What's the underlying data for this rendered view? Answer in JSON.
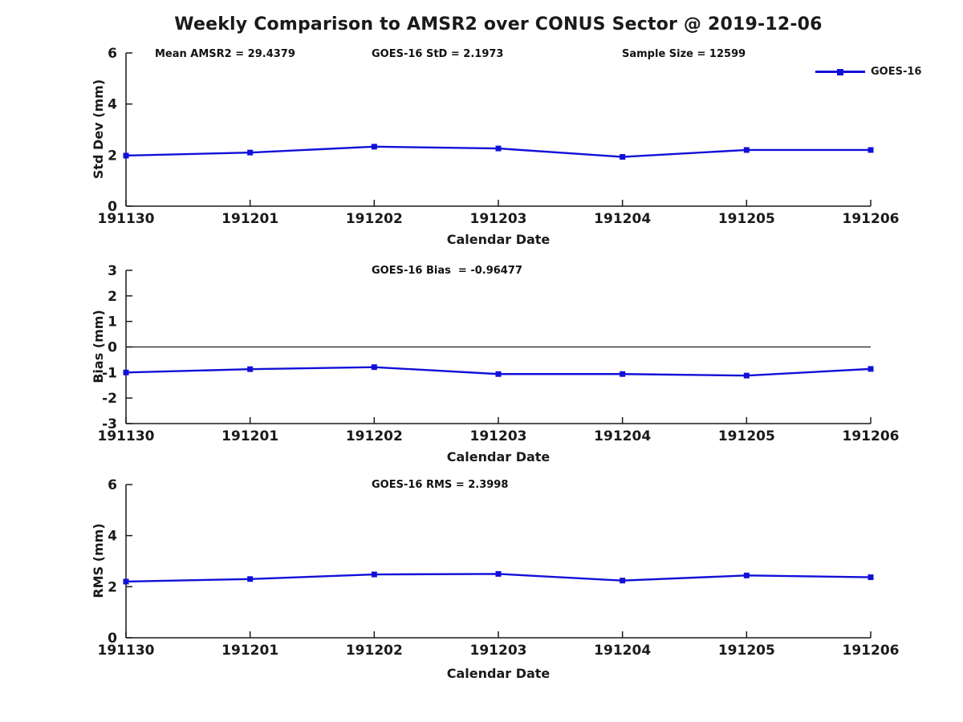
{
  "title": "Weekly Comparison to AMSR2 over CONUS Sector @ 2019-12-06",
  "xlabel": "Calendar Date",
  "legend": {
    "label": "GOES-16"
  },
  "colors": {
    "line": "#1010d8",
    "axis": "#1a1a1a",
    "text": "#1a1a1a",
    "background": "#ffffff"
  },
  "categories": [
    "191130",
    "191201",
    "191202",
    "191203",
    "191204",
    "191205",
    "191206"
  ],
  "chart_data": [
    {
      "type": "line",
      "name": "std-dev",
      "ylabel": "Std Dev (mm)",
      "xlabel": "Calendar Date",
      "ylim": [
        0,
        6
      ],
      "yticks": [
        0,
        2,
        4,
        6
      ],
      "grid": false,
      "legend_position": "top-right",
      "annotations": [
        "Mean AMSR2 = 29.4379",
        "GOES-16 StD = 2.1973",
        "Sample Size = 12599"
      ],
      "series": [
        {
          "name": "GOES-16",
          "values": [
            1.98,
            2.1,
            2.33,
            2.26,
            1.93,
            2.2,
            2.2
          ]
        }
      ]
    },
    {
      "type": "line",
      "name": "bias",
      "ylabel": "Bias (mm)",
      "xlabel": "Calendar Date",
      "ylim": [
        -3,
        3
      ],
      "yticks": [
        -3,
        -2,
        -1,
        0,
        1,
        2,
        3
      ],
      "grid": false,
      "zero_line": true,
      "annotations": [
        "GOES-16 Bias  = -0.96477"
      ],
      "series": [
        {
          "name": "GOES-16",
          "values": [
            -1.0,
            -0.87,
            -0.79,
            -1.06,
            -1.06,
            -1.12,
            -0.86
          ]
        }
      ]
    },
    {
      "type": "line",
      "name": "rms",
      "ylabel": "RMS (mm)",
      "xlabel": "Calendar Date",
      "ylim": [
        0,
        6
      ],
      "yticks": [
        0,
        2,
        4,
        6
      ],
      "grid": false,
      "annotations": [
        "GOES-16 RMS = 2.3998"
      ],
      "series": [
        {
          "name": "GOES-16",
          "values": [
            2.2,
            2.3,
            2.48,
            2.5,
            2.24,
            2.44,
            2.37
          ]
        }
      ]
    }
  ]
}
